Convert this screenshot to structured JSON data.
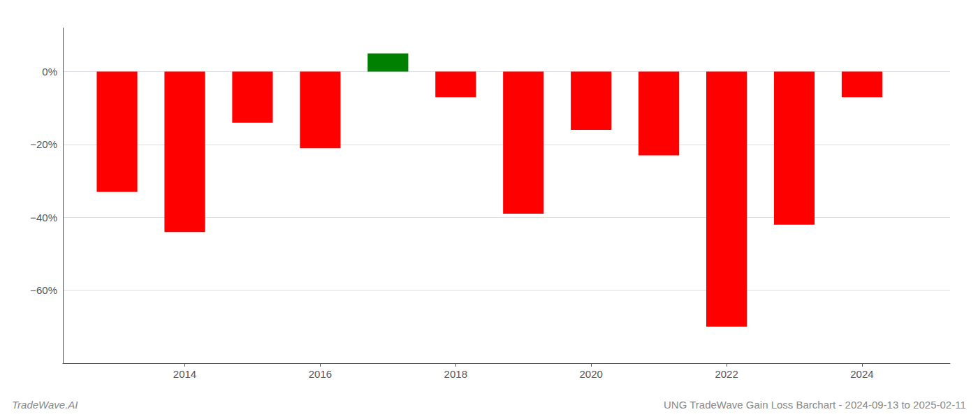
{
  "chart_data": {
    "type": "bar",
    "title": "UNG TradeWave Gain Loss Barchart - 2024-09-13 to 2025-02-11",
    "annotations": [
      "TradeWave.AI"
    ],
    "x": [
      2013,
      2014,
      2015,
      2016,
      2017,
      2018,
      2019,
      2020,
      2021,
      2022,
      2023,
      2024
    ],
    "values": [
      -0.33,
      -0.44,
      -0.14,
      -0.21,
      0.05,
      -0.07,
      -0.39,
      -0.16,
      -0.23,
      -0.7,
      -0.42,
      -0.07
    ],
    "colors": [
      "#ff0000",
      "#ff0000",
      "#ff0000",
      "#ff0000",
      "#008000",
      "#ff0000",
      "#ff0000",
      "#ff0000",
      "#ff0000",
      "#ff0000",
      "#ff0000",
      "#ff0000"
    ],
    "xlim": [
      2012.2,
      2025.3
    ],
    "xticks": [
      2014,
      2016,
      2018,
      2020,
      2022,
      2024
    ],
    "ylim": [
      -0.8,
      0.12
    ],
    "yticks": [
      {
        "value": 0.0,
        "label": "0%"
      },
      {
        "value": -0.2,
        "label": "−20%"
      },
      {
        "value": -0.4,
        "label": "−40%"
      },
      {
        "value": -0.6,
        "label": "−60%"
      }
    ],
    "grid": true
  }
}
